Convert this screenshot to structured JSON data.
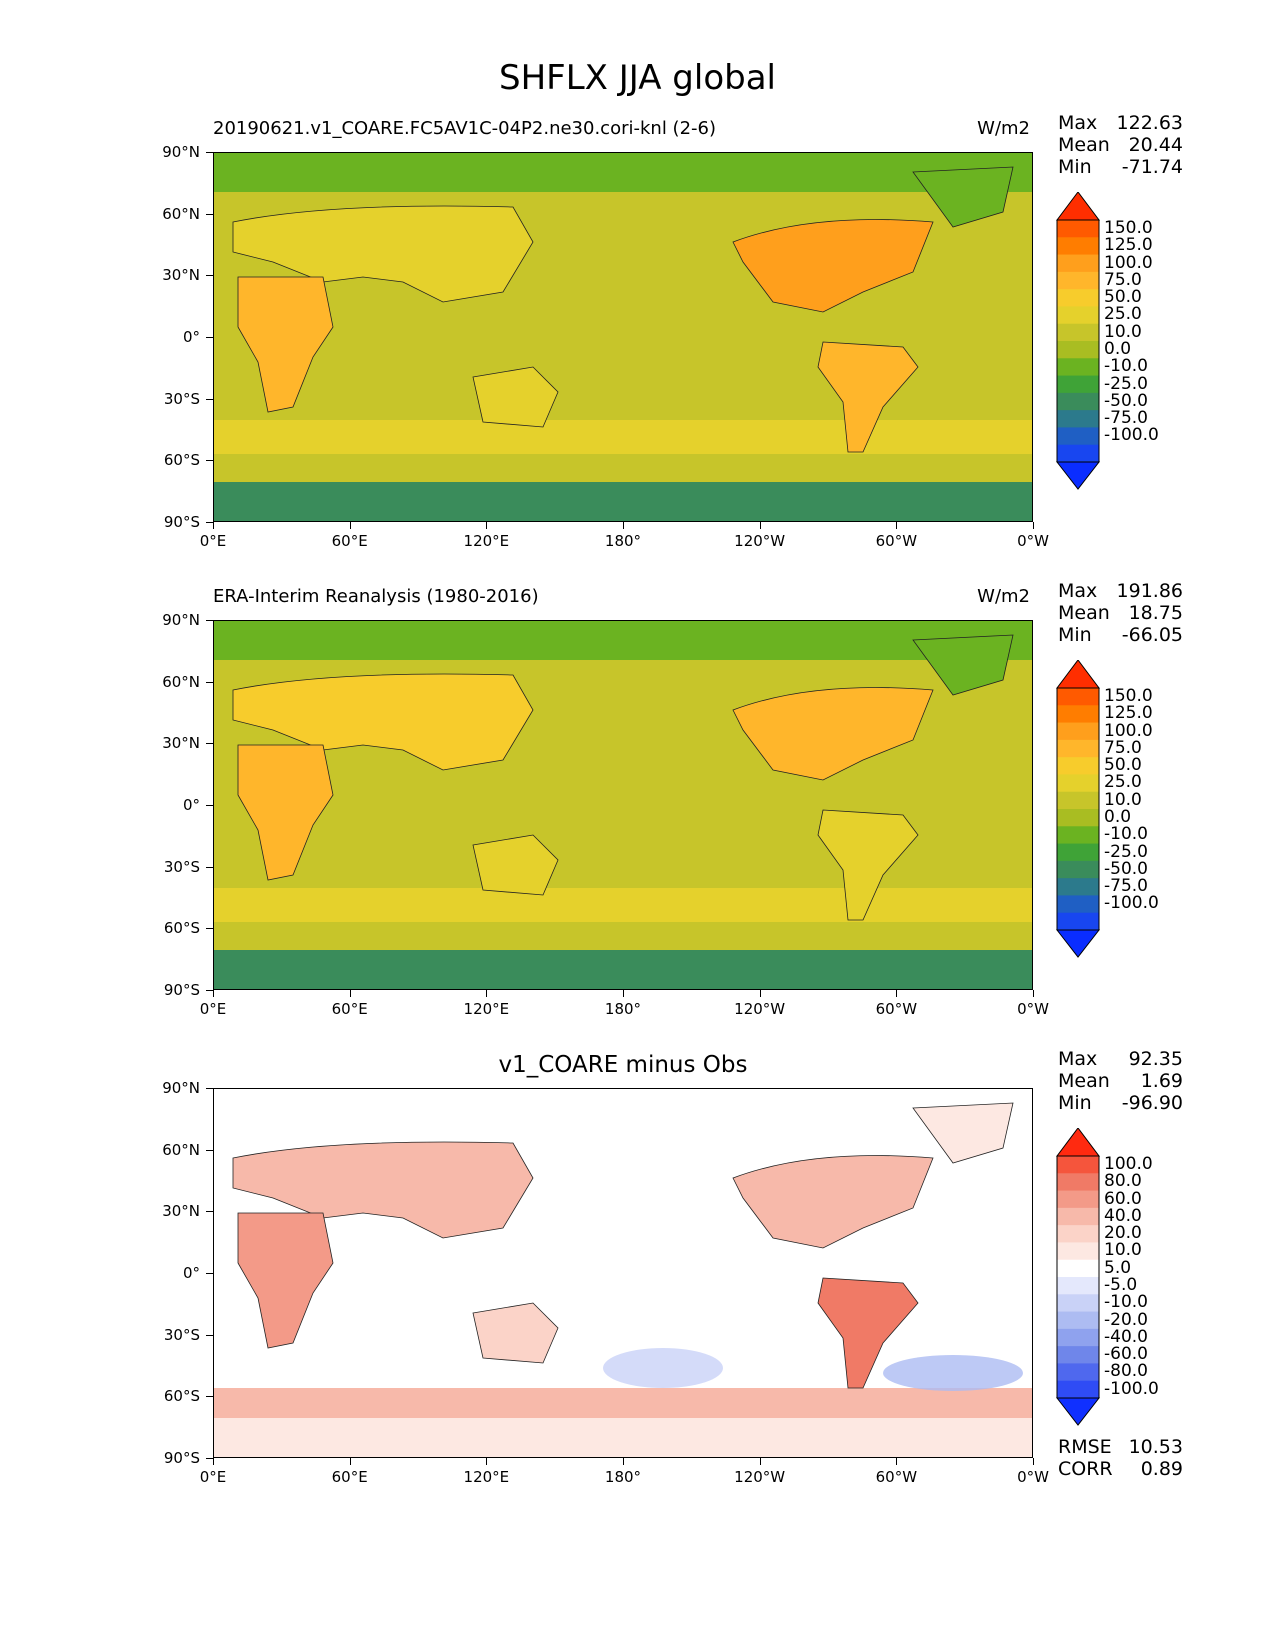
{
  "figure": {
    "title": "SHFLX JJA global"
  },
  "axes": {
    "lat_labels": [
      "90°N",
      "60°N",
      "30°N",
      "0°",
      "30°S",
      "60°S",
      "90°S"
    ],
    "lon_labels": [
      "0°E",
      "60°E",
      "120°E",
      "180°",
      "120°W",
      "60°W",
      "0°W"
    ]
  },
  "panels": [
    {
      "left_title": "20190621.v1_COARE.FC5AV1C-04P2.ne30.cori-knl (2-6)",
      "right_title": "W/m2",
      "center_title": "",
      "stats": [
        {
          "label": "Max",
          "value": "122.63"
        },
        {
          "label": "Mean",
          "value": "20.44"
        },
        {
          "label": "Min",
          "value": "-71.74"
        }
      ],
      "colorbar_ticks": [
        "150.0",
        "125.0",
        "100.0",
        "75.0",
        "50.0",
        "25.0",
        "10.0",
        "0.0",
        "-10.0",
        "-25.0",
        "-50.0",
        "-75.0",
        "-100.0"
      ],
      "colorbar_colors": [
        "#ff2e00",
        "#ff5a00",
        "#ff7d00",
        "#ff9f1c",
        "#ffb62b",
        "#f7cc2c",
        "#e5d12c",
        "#c7c52a",
        "#a9bd22",
        "#6bb321",
        "#3fa337",
        "#3a8c5b",
        "#2c7a8c",
        "#1f5fc4",
        "#1846f0",
        "#0a2dff"
      ],
      "bottom_stats": []
    },
    {
      "left_title": "ERA-Interim Reanalysis (1980-2016)",
      "right_title": "W/m2",
      "center_title": "",
      "stats": [
        {
          "label": "Max",
          "value": "191.86"
        },
        {
          "label": "Mean",
          "value": "18.75"
        },
        {
          "label": "Min",
          "value": "-66.05"
        }
      ],
      "colorbar_ticks": [
        "150.0",
        "125.0",
        "100.0",
        "75.0",
        "50.0",
        "25.0",
        "10.0",
        "0.0",
        "-10.0",
        "-25.0",
        "-50.0",
        "-75.0",
        "-100.0"
      ],
      "colorbar_colors": [
        "#ff2e00",
        "#ff5a00",
        "#ff7d00",
        "#ff9f1c",
        "#ffb62b",
        "#f7cc2c",
        "#e5d12c",
        "#c7c52a",
        "#a9bd22",
        "#6bb321",
        "#3fa337",
        "#3a8c5b",
        "#2c7a8c",
        "#1f5fc4",
        "#1846f0",
        "#0a2dff"
      ],
      "bottom_stats": []
    },
    {
      "left_title": "",
      "right_title": "",
      "center_title": "v1_COARE minus Obs",
      "stats": [
        {
          "label": "Max",
          "value": "92.35"
        },
        {
          "label": "Mean",
          "value": "1.69"
        },
        {
          "label": "Min",
          "value": "-96.90"
        }
      ],
      "colorbar_ticks": [
        "100.0",
        "80.0",
        "60.0",
        "40.0",
        "20.0",
        "10.0",
        "5.0",
        "-5.0",
        "-10.0",
        "-20.0",
        "-40.0",
        "-60.0",
        "-80.0",
        "-100.0"
      ],
      "colorbar_colors": [
        "#ff2a10",
        "#f5553c",
        "#f07a66",
        "#f39a88",
        "#f7b9aa",
        "#fbd3c8",
        "#fde8e2",
        "#ffffff",
        "#e4e8fc",
        "#c9d2f7",
        "#adbcf2",
        "#8fa2ee",
        "#6f86ea",
        "#4f68ee",
        "#2f4cf5",
        "#1030ff"
      ],
      "bottom_stats": [
        {
          "label": "RMSE",
          "value": "10.53"
        },
        {
          "label": "CORR",
          "value": "0.89"
        }
      ]
    }
  ]
}
